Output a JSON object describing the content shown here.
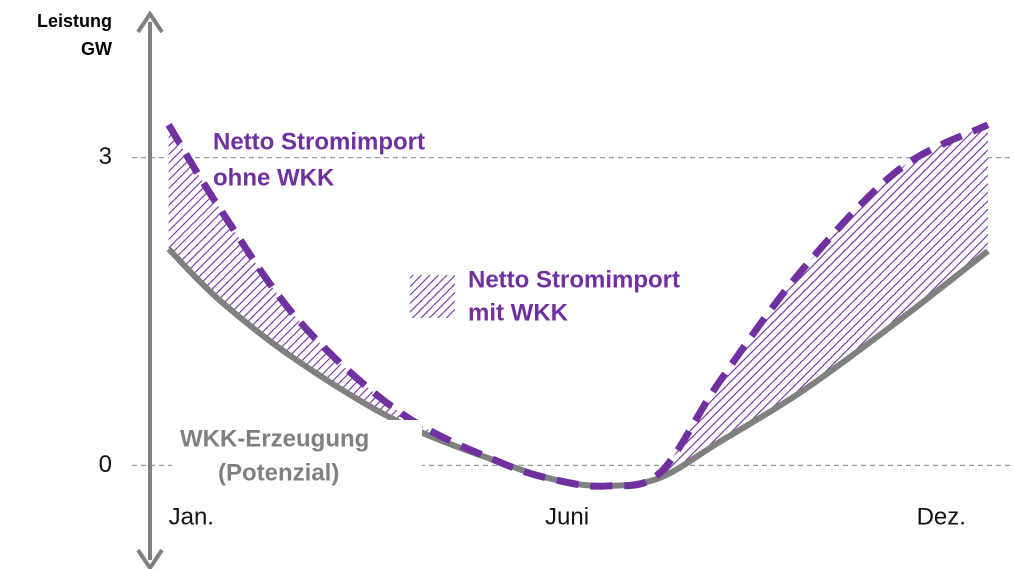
{
  "chart_data": {
    "type": "line",
    "y_label_lines": [
      "Leistung",
      "GW"
    ],
    "xlim": [
      0.75,
      12.35
    ],
    "ylim": [
      -1,
      4.4
    ],
    "xticks": [
      {
        "value": 1,
        "label": "Jan."
      },
      {
        "value": 6,
        "label": "Juni"
      },
      {
        "value": 12,
        "label": "Dez."
      }
    ],
    "yticks": [
      0,
      3
    ],
    "grid": true,
    "x": [
      1,
      1.7,
      2.75,
      4.1,
      5.45,
      6.25,
      6.9,
      7.6,
      8.4,
      9.5,
      10.8,
      12
    ],
    "series": [
      {
        "name_lines": [
          "WKK-Erzeugung",
          "(Potenzial)"
        ],
        "color": "#808080",
        "style": "solid",
        "values": [
          2.11,
          1.6,
          1.01,
          0.42,
          0.03,
          -0.15,
          -0.2,
          -0.12,
          0.23,
          0.72,
          1.41,
          2.09
        ]
      },
      {
        "name_lines": [
          "Netto Stromimport",
          "ohne WKK"
        ],
        "color": "#7030a0",
        "style": "dashed",
        "values": [
          3.32,
          2.49,
          1.41,
          0.52,
          0.03,
          -0.15,
          -0.2,
          -0.07,
          0.82,
          1.9,
          2.88,
          3.32
        ]
      }
    ],
    "fill_between": {
      "name_lines": [
        "Netto Stromimport",
        "mit WKK"
      ],
      "color": "#7030a0"
    }
  }
}
